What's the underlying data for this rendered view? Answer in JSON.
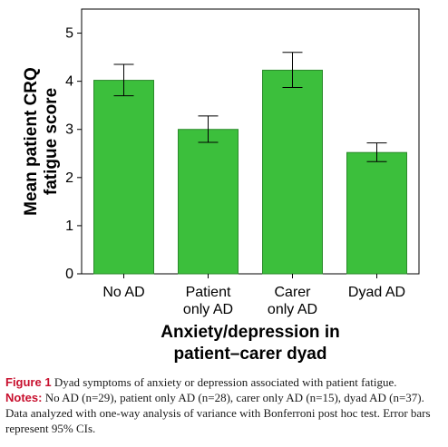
{
  "chart_data": {
    "type": "bar",
    "categories": [
      [
        "No AD"
      ],
      [
        "Patient",
        "only AD"
      ],
      [
        "Carer",
        "only AD"
      ],
      [
        "Dyad AD"
      ]
    ],
    "values": [
      4.02,
      3.0,
      4.23,
      2.52
    ],
    "error_low": [
      3.7,
      2.73,
      3.87,
      2.33
    ],
    "error_high": [
      4.35,
      3.28,
      4.6,
      2.72
    ],
    "ylabel": [
      "Mean patient CRQ",
      "fatigue score"
    ],
    "xlabel": [
      "Anxiety/depression in",
      "patient–carer dyad"
    ],
    "ylim": [
      0,
      5.5
    ],
    "yticks": [
      0,
      1,
      2,
      3,
      4,
      5
    ],
    "grid": false,
    "bar_color": "#3cbf3c",
    "bar_edge": "#2a8a2a"
  },
  "caption": {
    "figure_label": "Figure 1",
    "figure_text": " Dyad symptoms of anxiety or depression associated with patient fatigue.",
    "notes_label": "Notes:",
    "notes_text": " No AD (n=29), patient only AD (n=28), carer only AD (n=15), dyad AD (n=37). Data analyzed with one-way analysis of variance with Bonferroni post hoc test. Error bars represent 95% CIs."
  }
}
